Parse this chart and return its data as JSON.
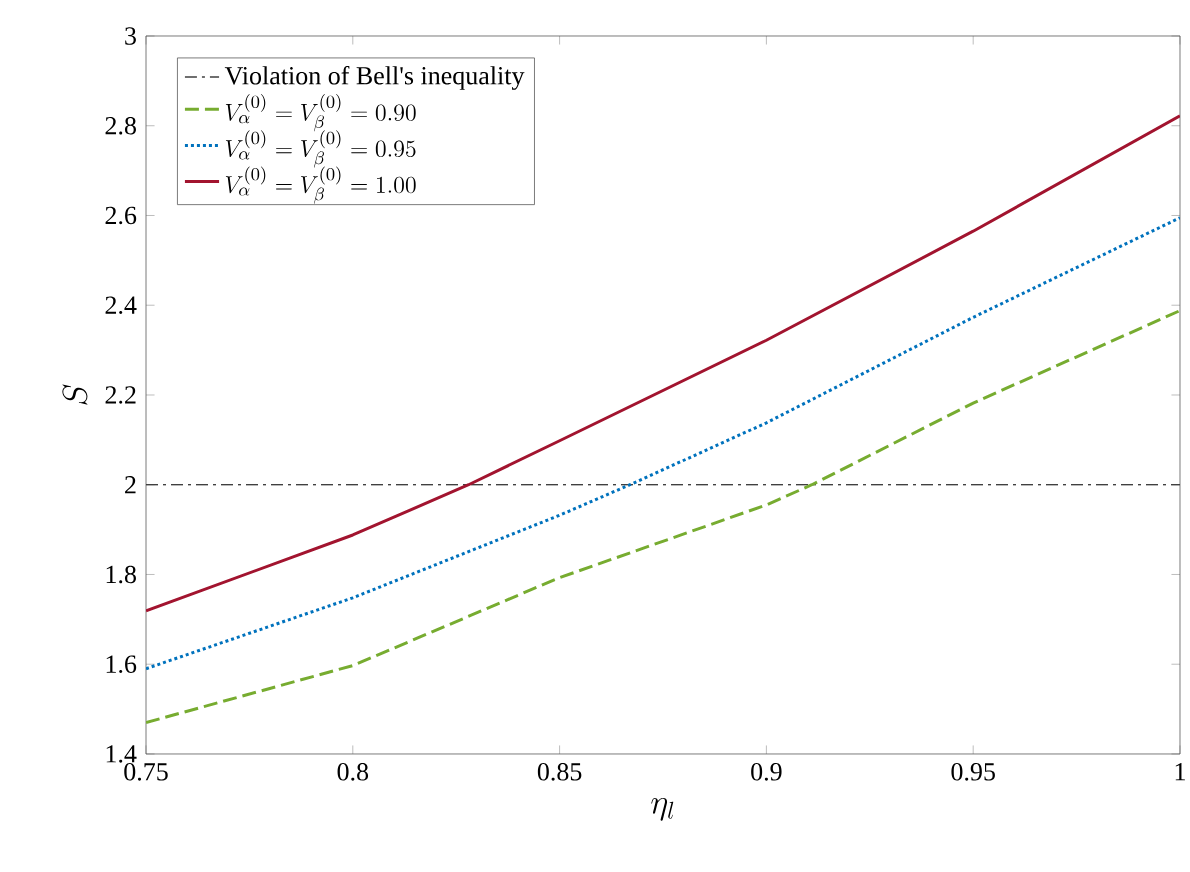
{
  "chart_data": {
    "type": "line",
    "xlabel": "\\eta_l",
    "ylabel": "S",
    "xlim": [
      0.75,
      1
    ],
    "ylim": [
      1.4,
      3
    ],
    "xticks": [
      0.75,
      0.8,
      0.85,
      0.9,
      0.95,
      1
    ],
    "yticks": [
      1.4,
      1.6,
      1.8,
      2,
      2.2,
      2.4,
      2.6,
      2.8,
      3
    ],
    "grid": false,
    "legend": "top left",
    "marker": "none",
    "ref_lines": [
      {
        "axis": "y",
        "value": 2,
        "label": "Violation of Bell's inequality",
        "color": "#404040",
        "line_style": "dashdot"
      }
    ],
    "series": [
      {
        "name": "V_{\\alpha}^{(0)} = V_{\\beta}^{(0)} = 0.90",
        "color": "#77ac30",
        "line_style": "dashed",
        "x": [
          0.75,
          0.8,
          0.85,
          0.9,
          0.911,
          0.95,
          1
        ],
        "values": [
          1.47,
          1.597,
          1.793,
          1.955,
          2.0,
          2.182,
          2.388
        ]
      },
      {
        "name": "V_{\\alpha}^{(0)} = V_{\\beta}^{(0)} = 0.95",
        "color": "#0072bd",
        "line_style": "dotted",
        "x": [
          0.75,
          0.8,
          0.85,
          0.867,
          0.9,
          0.95,
          1
        ],
        "values": [
          1.59,
          1.748,
          1.932,
          2.0,
          2.138,
          2.373,
          2.595
        ]
      },
      {
        "name": "V_{\\alpha}^{(0)} = V_{\\beta}^{(0)} = 1.00",
        "color": "#a2142f",
        "line_style": "solid",
        "x": [
          0.75,
          0.8,
          0.828,
          0.85,
          0.9,
          0.95,
          1
        ],
        "values": [
          1.719,
          1.888,
          2.0,
          2.098,
          2.322,
          2.565,
          2.822
        ]
      }
    ]
  }
}
